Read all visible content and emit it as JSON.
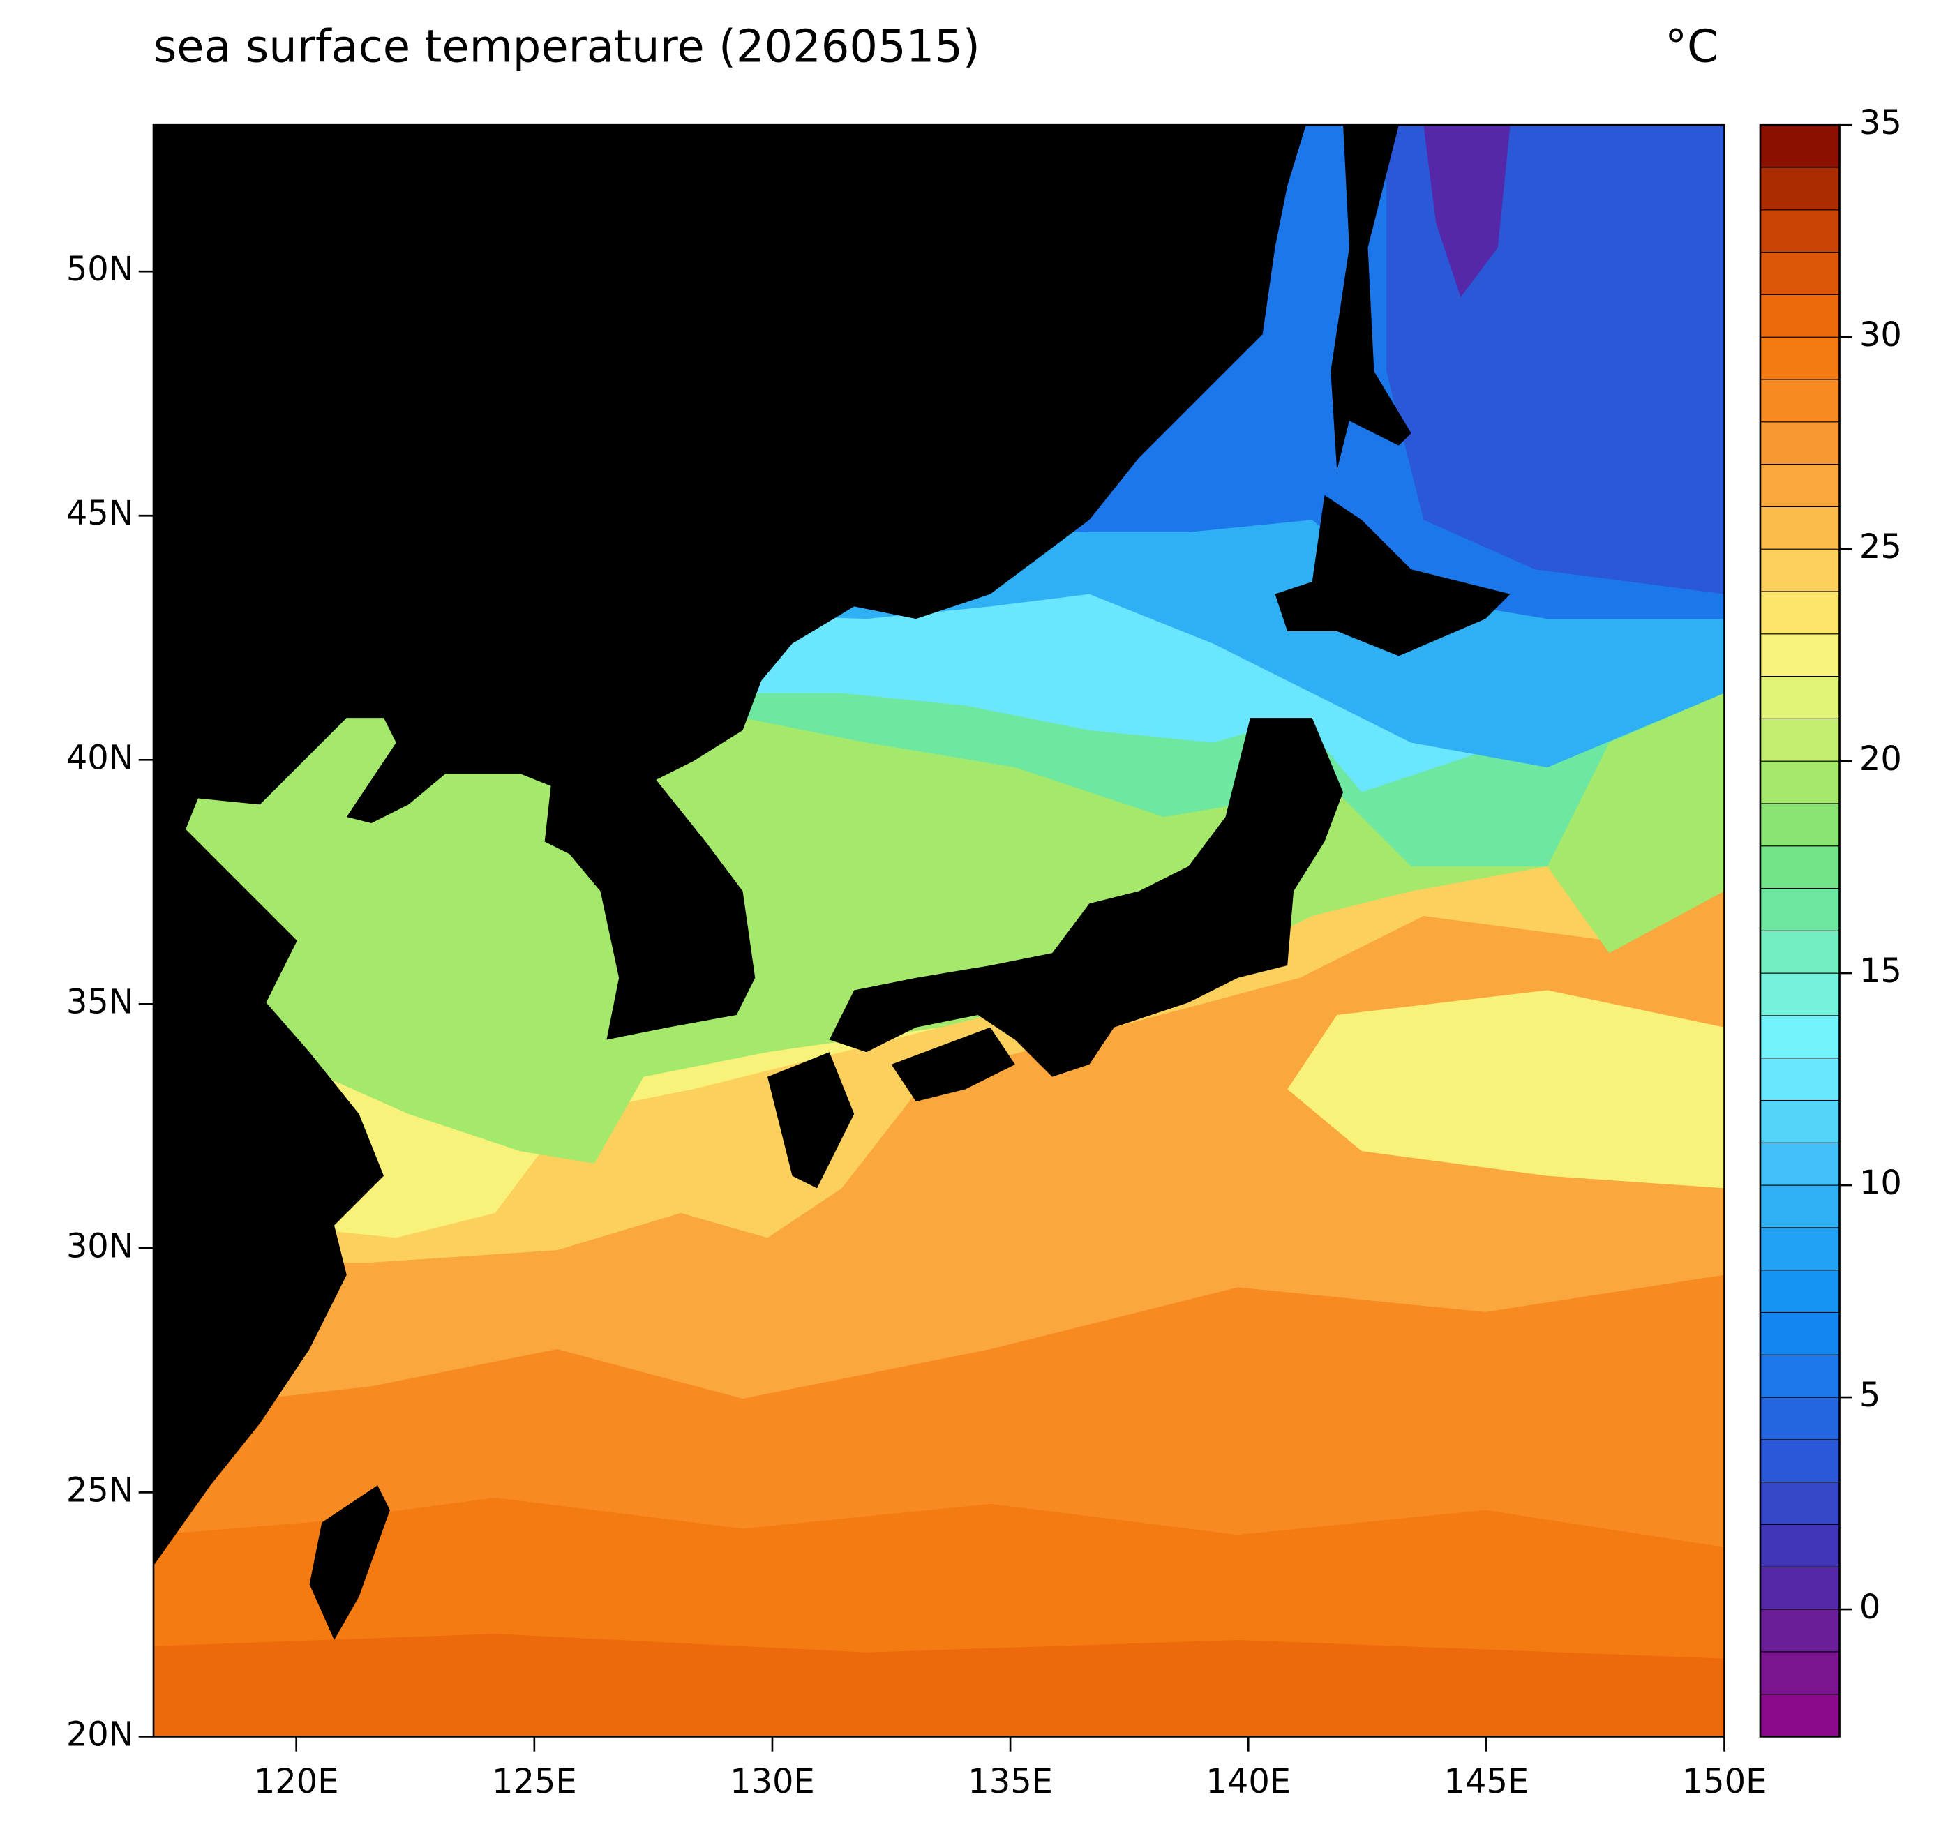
{
  "title": "sea surface temperature (20260515)",
  "unit": "°C",
  "map": {
    "xlim": [
      117,
      150
    ],
    "ylim": [
      20,
      53
    ],
    "xticks": [
      {
        "value": 120,
        "label": "120E"
      },
      {
        "value": 125,
        "label": "125E"
      },
      {
        "value": 130,
        "label": "130E"
      },
      {
        "value": 135,
        "label": "135E"
      },
      {
        "value": 140,
        "label": "140E"
      },
      {
        "value": 145,
        "label": "145E"
      },
      {
        "value": 150,
        "label": "150E"
      }
    ],
    "yticks": [
      {
        "value": 20,
        "label": "20N"
      },
      {
        "value": 25,
        "label": "25N"
      },
      {
        "value": 30,
        "label": "30N"
      },
      {
        "value": 35,
        "label": "35N"
      },
      {
        "value": 40,
        "label": "40N"
      },
      {
        "value": 45,
        "label": "45N"
      },
      {
        "value": 50,
        "label": "50N"
      }
    ]
  },
  "colorbar": {
    "clim": [
      -3,
      35
    ],
    "ticks": [
      0,
      5,
      10,
      15,
      20,
      25,
      30,
      35
    ],
    "colors": [
      "#8a0a8a",
      "#7a148f",
      "#6a1e98",
      "#5428a8",
      "#4236b8",
      "#3546c8",
      "#2b58d6",
      "#2566e0",
      "#1c78ea",
      "#1386f2",
      "#1594f4",
      "#22a2f4",
      "#30b0f4",
      "#40c0f6",
      "#55d4fa",
      "#6ae6fe",
      "#72f2fa",
      "#74f2dc",
      "#72eec0",
      "#6ee8a0",
      "#74e488",
      "#8ae474",
      "#a4e86c",
      "#c4ee70",
      "#e2f478",
      "#f8f27a",
      "#fde46c",
      "#fcd05c",
      "#fbbc4c",
      "#faa83e",
      "#f99830",
      "#f88a22",
      "#f47a12",
      "#ec6a0c",
      "#dc5808",
      "#c84404",
      "#ac2c02",
      "#8c1000"
    ]
  }
}
